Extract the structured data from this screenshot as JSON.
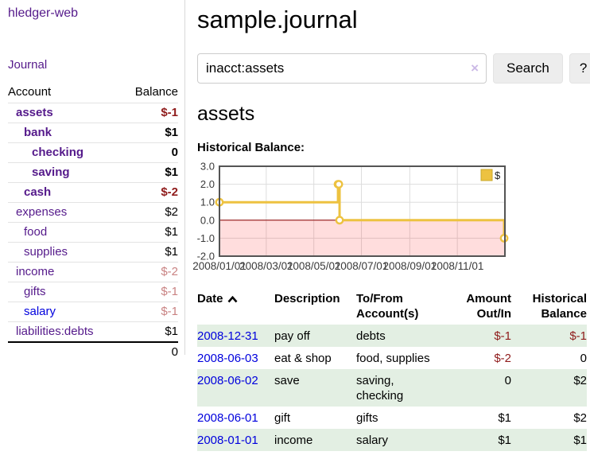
{
  "colors": {
    "link_purple": "#551a8b",
    "link_blue": "#0000dd",
    "negative_strong": "#8f1b1b",
    "negative_soft": "#c98383",
    "row_green": "#e3efe3",
    "chart_line": "#edc240",
    "chart_negative_region": "#ffdddd",
    "chart_zero_line": "#8b0000",
    "chart_grid": "#dddddd",
    "chart_border": "#545454"
  },
  "app": {
    "brand": "hledger-web",
    "nav_journal": "Journal"
  },
  "sidebar": {
    "account_header": "Account",
    "balance_header": "Balance",
    "accounts": [
      {
        "name": "assets",
        "balance": "$-1"
      },
      {
        "name": "bank",
        "balance": "$1"
      },
      {
        "name": "checking",
        "balance": "0"
      },
      {
        "name": "saving",
        "balance": "$1"
      },
      {
        "name": "cash",
        "balance": "$-2"
      },
      {
        "name": "expenses",
        "balance": "$2"
      },
      {
        "name": "food",
        "balance": "$1"
      },
      {
        "name": "supplies",
        "balance": "$1"
      },
      {
        "name": "income",
        "balance": "$-2"
      },
      {
        "name": "gifts",
        "balance": "$-1"
      },
      {
        "name": "salary",
        "balance": "$-1"
      },
      {
        "name": "liabilities:debts",
        "balance": "$1"
      }
    ],
    "total": "0"
  },
  "main": {
    "title": "sample.journal",
    "search": {
      "value": "inacct:assets",
      "clear_icon": "×",
      "search_button": "Search",
      "help_button": "?"
    },
    "account_title": "assets",
    "chart_title": "Historical Balance:"
  },
  "chart_data": {
    "type": "line",
    "step": true,
    "title": "Historical Balance:",
    "series": [
      {
        "name": "$",
        "color": "#edc240",
        "points": [
          {
            "date": "2008-01-01",
            "value": 1
          },
          {
            "date": "2008-06-01",
            "value": 2
          },
          {
            "date": "2008-06-02",
            "value": 2
          },
          {
            "date": "2008-06-03",
            "value": 0
          },
          {
            "date": "2008-12-31",
            "value": -1
          }
        ]
      }
    ],
    "x_ticks": [
      "2008/01/01",
      "2008/03/01",
      "2008/05/01",
      "2008/07/01",
      "2008/09/01",
      "2008/11/01"
    ],
    "y_ticks": [
      "3.0",
      "2.0",
      "1.0",
      "0.0",
      "-1.0",
      "-2.0"
    ],
    "ylim": [
      -2,
      3
    ],
    "xlim": [
      "2008-01-01",
      "2009-01-01"
    ],
    "grid": true,
    "legend_position": "top-right",
    "negative_region": true,
    "zero_line": true
  },
  "register": {
    "headers": {
      "date": "Date",
      "description": "Description",
      "accounts": "To/From Account(s)",
      "amount": "Amount Out/In",
      "balance": "Historical Balance"
    },
    "rows": [
      {
        "date": "2008-12-31",
        "description": "pay off",
        "accounts": "debts",
        "amount": "$-1",
        "balance": "$-1"
      },
      {
        "date": "2008-06-03",
        "description": "eat & shop",
        "accounts": "food, supplies",
        "amount": "$-2",
        "balance": "0"
      },
      {
        "date": "2008-06-02",
        "description": "save",
        "accounts": "saving, checking",
        "amount": "0",
        "balance": "$2"
      },
      {
        "date": "2008-06-01",
        "description": "gift",
        "accounts": "gifts",
        "amount": "$1",
        "balance": "$2"
      },
      {
        "date": "2008-01-01",
        "description": "income",
        "accounts": "salary",
        "amount": "$1",
        "balance": "$1"
      }
    ]
  }
}
